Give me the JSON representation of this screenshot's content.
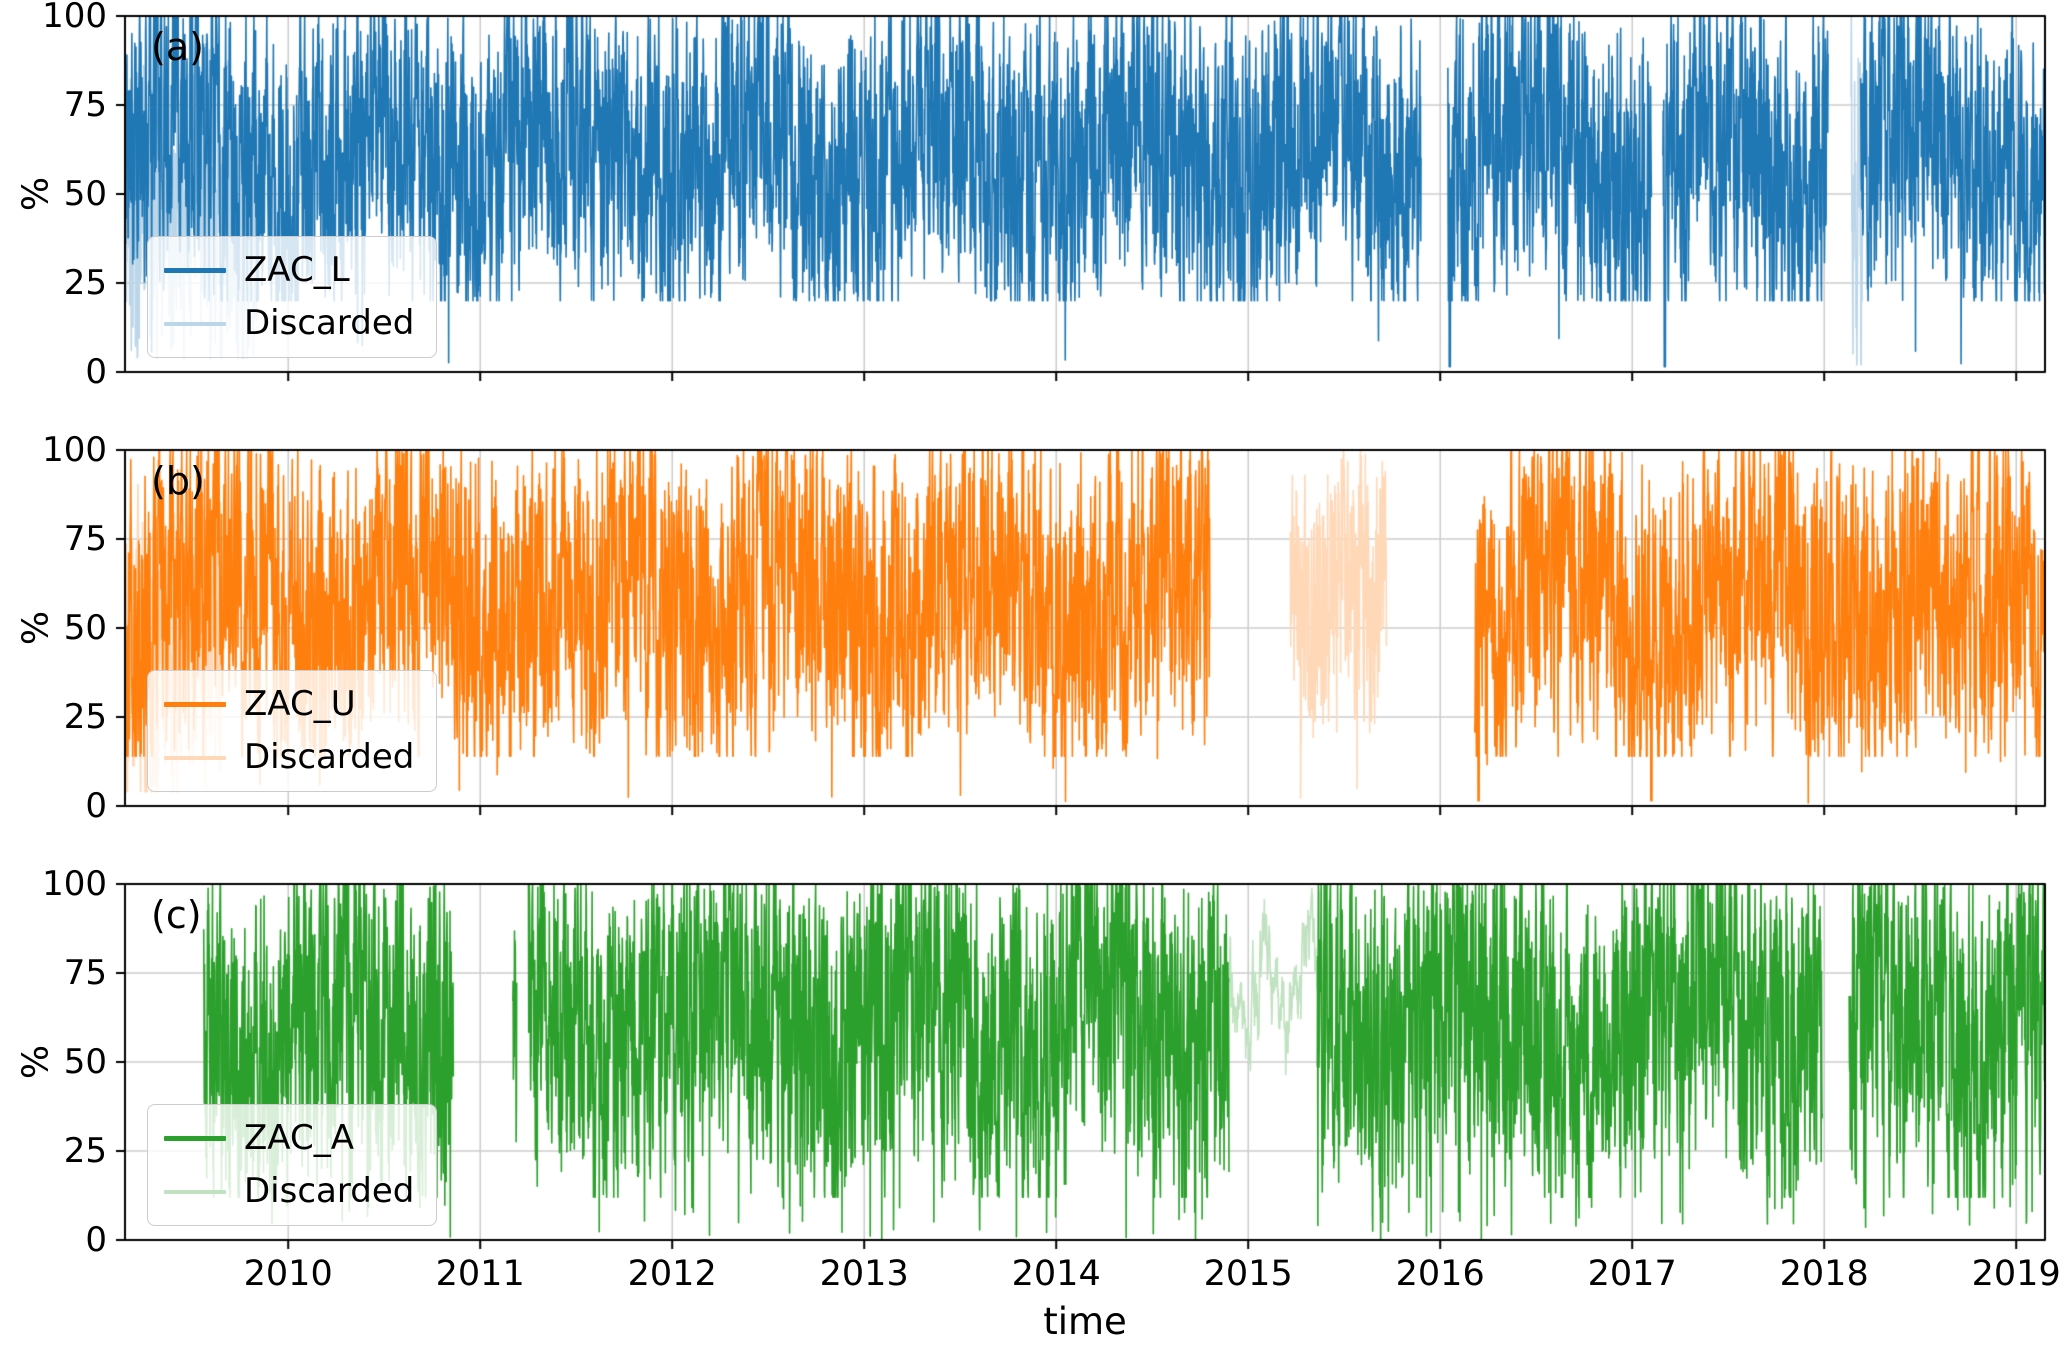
{
  "figure": {
    "background": "#ffffff"
  },
  "chart_data": {
    "type": "line",
    "title": "",
    "xlabel": "time",
    "ylabel": "%",
    "x_range": [
      2009.15,
      2019.15
    ],
    "y_range": [
      0,
      100
    ],
    "x_ticks": [
      2010,
      2011,
      2012,
      2013,
      2014,
      2015,
      2016,
      2017,
      2018,
      2019
    ],
    "y_ticks": [
      0,
      25,
      50,
      75,
      100
    ],
    "grid": true,
    "grid_color": "#cccccc",
    "spine_color": "#000000",
    "panels": [
      {
        "panel_label": "(a)",
        "series": [
          {
            "name": "ZAC_L",
            "color": "#1f77b4"
          },
          {
            "name": "Discarded",
            "color": "#bcd6e9"
          }
        ],
        "legend_position": "lower left",
        "gen": {
          "seed": 11,
          "samples_per_year": 700,
          "mean": 60,
          "seasonal": 9,
          "season_phase": 0.15,
          "noise": 34,
          "ar": 0.5,
          "spike_prob": 0.0015,
          "spike_top": 12,
          "floor": 20
        },
        "zero_spikes": [
          2016.05,
          2017.17
        ],
        "segments": [
          {
            "kind": "discarded",
            "start": 2009.15,
            "end": 2009.85,
            "gen": {
              "mean": 42,
              "floor": 4
            }
          },
          {
            "kind": "discarded",
            "start": 2018.14,
            "end": 2018.2,
            "gen": {
              "mean": 45,
              "floor": 2,
              "noise": 40
            }
          },
          {
            "kind": "main",
            "start": 2009.15,
            "end": 2015.9
          },
          {
            "kind": "main",
            "start": 2016.04,
            "end": 2017.1
          },
          {
            "kind": "main",
            "start": 2017.16,
            "end": 2018.02
          },
          {
            "kind": "main",
            "start": 2018.19,
            "end": 2019.15
          }
        ]
      },
      {
        "panel_label": "(b)",
        "series": [
          {
            "name": "ZAC_U",
            "color": "#ff7f0e"
          },
          {
            "name": "Discarded",
            "color": "#ffd8b7"
          }
        ],
        "legend_position": "lower left",
        "gen": {
          "seed": 22,
          "samples_per_year": 700,
          "mean": 58,
          "seasonal": 8,
          "season_phase": 0.4,
          "noise": 34,
          "ar": 0.5,
          "spike_prob": 0.002,
          "spike_top": 15,
          "floor": 14
        },
        "zero_spikes": [
          2016.2,
          2017.1
        ],
        "segments": [
          {
            "kind": "discarded",
            "start": 2009.15,
            "end": 2009.65,
            "gen": {
              "mean": 40,
              "floor": 4
            }
          },
          {
            "kind": "discarded",
            "start": 2015.22,
            "end": 2015.72,
            "gen": {
              "mean": 55,
              "floor": 18,
              "noise": 30
            }
          },
          {
            "kind": "main",
            "start": 2009.15,
            "end": 2014.8
          },
          {
            "kind": "main",
            "start": 2016.18,
            "end": 2019.15
          }
        ]
      },
      {
        "panel_label": "(c)",
        "series": [
          {
            "name": "ZAC_A",
            "color": "#2ca02c"
          },
          {
            "name": "Discarded",
            "color": "#c0e2c0"
          }
        ],
        "legend_position": "lower left",
        "gen": {
          "seed": 33,
          "samples_per_year": 700,
          "mean": 61,
          "seasonal": 8,
          "season_phase": 0.0,
          "noise": 36,
          "ar": 0.5,
          "spike_prob": 0.012,
          "spike_top": 10,
          "floor": 12
        },
        "zero_spikes": [],
        "segments": [
          {
            "kind": "discarded",
            "start": 2014.9,
            "end": 2015.36,
            "gen": {
              "mean": 68,
              "noise": 7,
              "ar": 0.92,
              "seasonal": 0,
              "spike_prob": 0,
              "floor": 45
            }
          },
          {
            "kind": "main",
            "start": 2009.56,
            "end": 2010.86
          },
          {
            "kind": "main",
            "start": 2011.17,
            "end": 2011.19,
            "gen": {
              "mean": 40,
              "noise": 38,
              "floor": 5
            }
          },
          {
            "kind": "main",
            "start": 2011.25,
            "end": 2014.9
          },
          {
            "kind": "main",
            "start": 2015.36,
            "end": 2017.99
          },
          {
            "kind": "main",
            "start": 2018.13,
            "end": 2019.15
          }
        ]
      }
    ]
  }
}
